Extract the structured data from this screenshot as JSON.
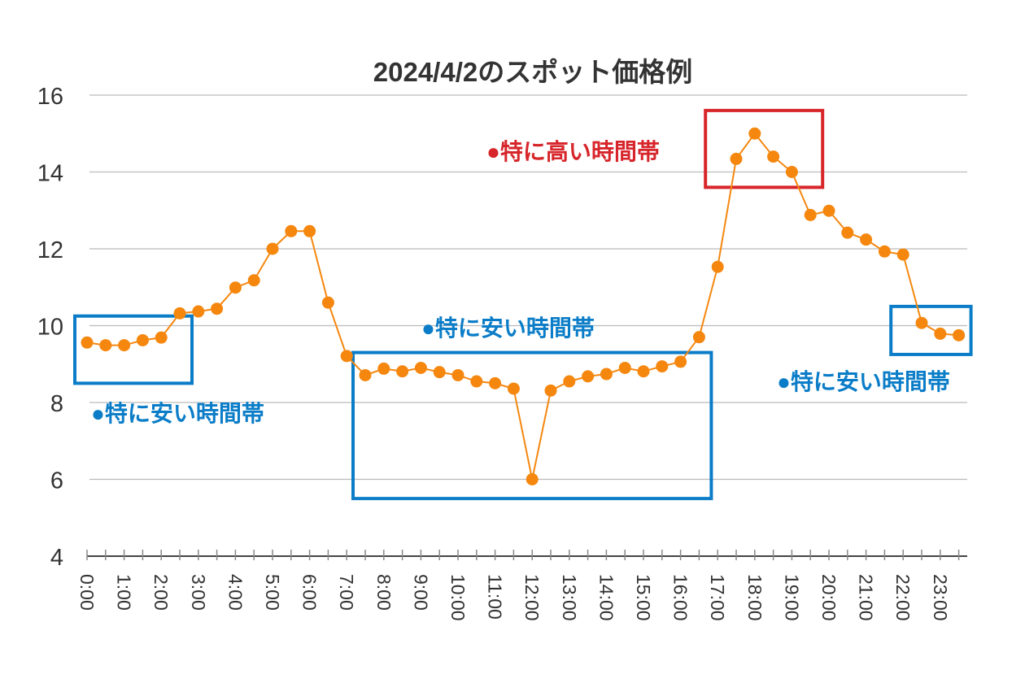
{
  "chart_data": {
    "type": "line",
    "title": "2024/4/2のスポット価格例",
    "xlabel": "",
    "ylabel": "",
    "ylim": [
      4,
      16
    ],
    "yticks": [
      4,
      6,
      8,
      10,
      12,
      14,
      16
    ],
    "grid": true,
    "x_tick_labels": [
      "0:00",
      "1:00",
      "2:00",
      "3:00",
      "4:00",
      "5:00",
      "6:00",
      "7:00",
      "8:00",
      "9:00",
      "10:00",
      "11:00",
      "12:00",
      "13:00",
      "14:00",
      "15:00",
      "16:00",
      "17:00",
      "18:00",
      "19:00",
      "20:00",
      "21:00",
      "22:00",
      "23:00"
    ],
    "x": [
      "0:00",
      "0:30",
      "1:00",
      "1:30",
      "2:00",
      "2:30",
      "3:00",
      "3:30",
      "4:00",
      "4:30",
      "5:00",
      "5:30",
      "6:00",
      "6:30",
      "7:00",
      "7:30",
      "8:00",
      "8:30",
      "9:00",
      "9:30",
      "10:00",
      "10:30",
      "11:00",
      "11:30",
      "12:00",
      "12:30",
      "13:00",
      "13:30",
      "14:00",
      "14:30",
      "15:00",
      "15:30",
      "16:00",
      "16:30",
      "17:00",
      "17:30",
      "18:00",
      "18:30",
      "19:00",
      "19:30",
      "20:00",
      "20:30",
      "21:00",
      "21:30",
      "22:00",
      "22:30",
      "23:00",
      "23:30"
    ],
    "series": [
      {
        "name": "スポット価格",
        "color": "#f5870f",
        "values": [
          9.56,
          9.49,
          9.49,
          9.62,
          9.69,
          10.32,
          10.37,
          10.44,
          10.99,
          11.18,
          12.0,
          12.46,
          12.46,
          10.6,
          9.21,
          8.71,
          8.88,
          8.81,
          8.9,
          8.79,
          8.71,
          8.55,
          8.5,
          8.36,
          6.0,
          8.31,
          8.55,
          8.68,
          8.74,
          8.9,
          8.81,
          8.94,
          9.06,
          9.7,
          11.53,
          14.34,
          15.0,
          14.4,
          14.0,
          12.88,
          12.99,
          12.42,
          12.24,
          11.93,
          11.85,
          10.07,
          9.79,
          9.75
        ]
      }
    ],
    "annotations": [
      {
        "label": "●特に安い時間帯",
        "color": "#0b7dc8",
        "kind": "cheap",
        "x_range": [
          "0:00",
          "2:30"
        ],
        "y_range": [
          8.5,
          10.25
        ]
      },
      {
        "label": "●特に安い時間帯",
        "color": "#0b7dc8",
        "kind": "cheap",
        "x_range": [
          "7:30",
          "16:30"
        ],
        "y_range": [
          5.5,
          9.3
        ]
      },
      {
        "label": "●特に高い時間帯",
        "color": "#d7262b",
        "kind": "expensive",
        "x_range": [
          "17:00",
          "19:30"
        ],
        "y_range": [
          13.6,
          15.6
        ]
      },
      {
        "label": "●特に安い時間帯",
        "color": "#0b7dc8",
        "kind": "cheap",
        "x_range": [
          "22:00",
          "23:30"
        ],
        "y_range": [
          9.25,
          10.5
        ]
      }
    ],
    "colors": {
      "line": "#f5870f",
      "cheap": "#0b7dc8",
      "expensive": "#d7262b",
      "text": "#333333",
      "grid": "#bbbbbb"
    }
  }
}
